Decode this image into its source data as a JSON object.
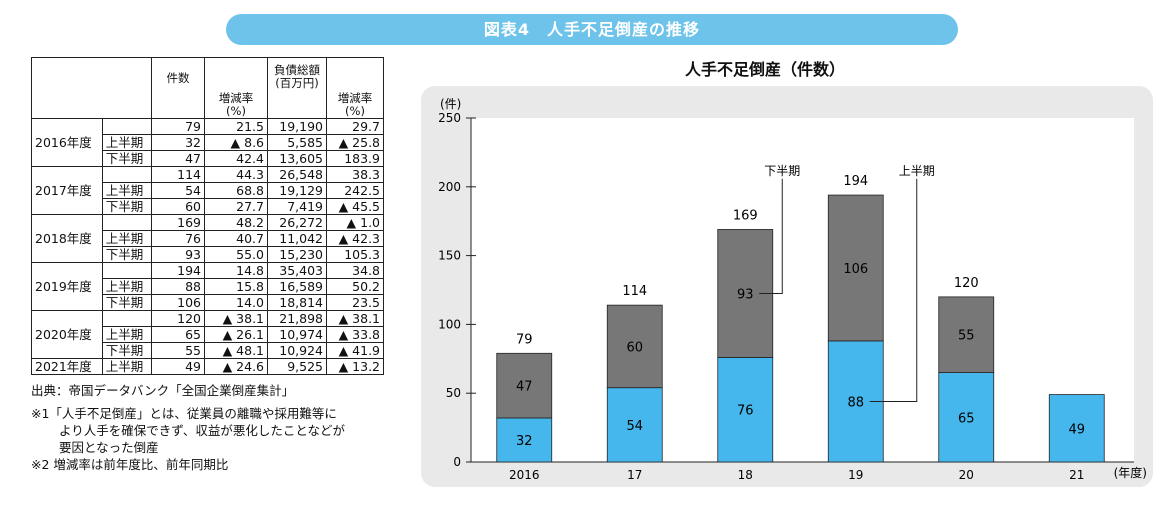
{
  "banner": "図表4　人手不足倒産の推移",
  "table": {
    "headers": {
      "count": "件数",
      "rate1": "増減率\n(%)",
      "debt": "負債総額\n(百万円)",
      "rate2": "増減率\n(%)"
    },
    "rows": [
      {
        "year": "",
        "half": "",
        "count": "79",
        "rate1": "21.5",
        "debt": "19,190",
        "rate2": "29.7"
      },
      {
        "year": "2016年度",
        "half": "上半期",
        "count": "32",
        "rate1": "▲ 8.6",
        "debt": "5,585",
        "rate2": "▲ 25.8"
      },
      {
        "year": "",
        "half": "下半期",
        "count": "47",
        "rate1": "42.4",
        "debt": "13,605",
        "rate2": "183.9"
      },
      {
        "year": "",
        "half": "",
        "count": "114",
        "rate1": "44.3",
        "debt": "26,548",
        "rate2": "38.3"
      },
      {
        "year": "2017年度",
        "half": "上半期",
        "count": "54",
        "rate1": "68.8",
        "debt": "19,129",
        "rate2": "242.5"
      },
      {
        "year": "",
        "half": "下半期",
        "count": "60",
        "rate1": "27.7",
        "debt": "7,419",
        "rate2": "▲ 45.5"
      },
      {
        "year": "",
        "half": "",
        "count": "169",
        "rate1": "48.2",
        "debt": "26,272",
        "rate2": "▲ 1.0"
      },
      {
        "year": "2018年度",
        "half": "上半期",
        "count": "76",
        "rate1": "40.7",
        "debt": "11,042",
        "rate2": "▲ 42.3"
      },
      {
        "year": "",
        "half": "下半期",
        "count": "93",
        "rate1": "55.0",
        "debt": "15,230",
        "rate2": "105.3"
      },
      {
        "year": "",
        "half": "",
        "count": "194",
        "rate1": "14.8",
        "debt": "35,403",
        "rate2": "34.8"
      },
      {
        "year": "2019年度",
        "half": "上半期",
        "count": "88",
        "rate1": "15.8",
        "debt": "16,589",
        "rate2": "50.2"
      },
      {
        "year": "",
        "half": "下半期",
        "count": "106",
        "rate1": "14.0",
        "debt": "18,814",
        "rate2": "23.5"
      },
      {
        "year": "",
        "half": "",
        "count": "120",
        "rate1": "▲ 38.1",
        "debt": "21,898",
        "rate2": "▲ 38.1"
      },
      {
        "year": "2020年度",
        "half": "上半期",
        "count": "65",
        "rate1": "▲ 26.1",
        "debt": "10,974",
        "rate2": "▲ 33.8"
      },
      {
        "year": "",
        "half": "下半期",
        "count": "55",
        "rate1": "▲ 48.1",
        "debt": "10,924",
        "rate2": "▲ 41.9"
      },
      {
        "year": "2021年度",
        "half": "上半期",
        "count": "49",
        "rate1": "▲ 24.6",
        "debt": "9,525",
        "rate2": "▲ 13.2"
      }
    ]
  },
  "notes": {
    "source": "出典：帝国データバンク「全国企業倒産集計」",
    "note1a": "※1「人手不足倒産」とは、従業員の離職や採用難等に",
    "note1b": "より人手を確保できず、収益が悪化したことなどが",
    "note1c": "要因となった倒産",
    "note2": "※2 増減率は前年度比、前年同期比"
  },
  "chart_data": {
    "type": "bar",
    "stacked": true,
    "title": "人手不足倒産（件数）",
    "y_unit_label": "(件)",
    "x_unit_label": "(年度)",
    "ylim": [
      0,
      250
    ],
    "yticks": [
      0,
      50,
      100,
      150,
      200,
      250
    ],
    "categories": [
      "2016",
      "17",
      "18",
      "19",
      "20",
      "21"
    ],
    "totals": [
      79,
      114,
      169,
      194,
      120,
      49
    ],
    "series": [
      {
        "name": "上半期",
        "values": [
          32,
          54,
          76,
          88,
          65,
          49
        ],
        "color": "#45b7ec"
      },
      {
        "name": "下半期",
        "values": [
          47,
          60,
          93,
          106,
          55,
          null
        ],
        "color": "#777777"
      }
    ],
    "callouts": {
      "lower_half": "下半期",
      "upper_half": "上半期"
    }
  }
}
